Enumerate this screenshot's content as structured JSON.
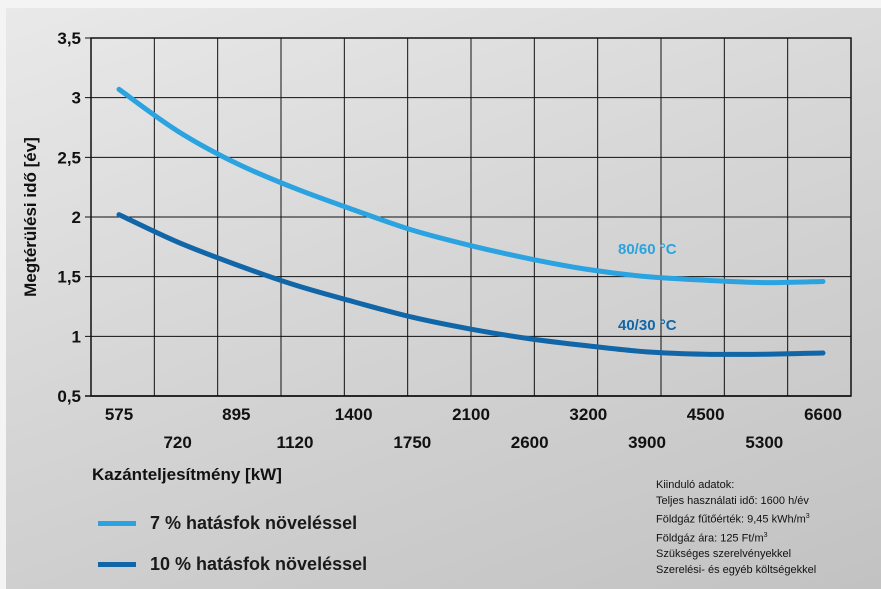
{
  "chart_data": {
    "type": "line",
    "ylabel": "Megtérülési idő  [év]",
    "xlabel": "Kazánteljesítmény  [kW]",
    "ylim": [
      0.5,
      3.5
    ],
    "yticks": [
      "0,5",
      "1",
      "1,5",
      "2",
      "2,5",
      "3",
      "3,5"
    ],
    "categories": [
      "575",
      "720",
      "895",
      "1120",
      "1400",
      "1750",
      "2100",
      "2600",
      "3200",
      "3900",
      "4500",
      "5300",
      "6600"
    ],
    "grid": true,
    "series": [
      {
        "name": "7  %  hatásfok  növeléssel",
        "label": "80/60  °C",
        "color": "#2aa3e0",
        "values": [
          3.07,
          2.72,
          2.45,
          2.24,
          2.06,
          1.89,
          1.76,
          1.65,
          1.56,
          1.5,
          1.47,
          1.45,
          1.46
        ]
      },
      {
        "name": "10  %  hatásfok  növeléssel",
        "label": "40/30  °C",
        "color": "#1166a8",
        "values": [
          2.02,
          1.79,
          1.6,
          1.43,
          1.29,
          1.16,
          1.06,
          0.98,
          0.92,
          0.87,
          0.85,
          0.85,
          0.86
        ]
      }
    ]
  },
  "inputs": {
    "title": "Kiinduló adatok:",
    "line1": "Teljes  használati  idő:  1600  h/év",
    "line2": "Földgáz  fűtőérték:  9,45  kWh/m",
    "line2_sup": "3",
    "line3": "Földgáz  ára:  125  Ft/m",
    "line3_sup": "3",
    "line4": "Szükséges  szerelvényekkel",
    "line5": "Szerelési-  és  egyéb  költségekkel"
  },
  "colors": {
    "light": "#2aa3e0",
    "dark": "#1166a8"
  }
}
